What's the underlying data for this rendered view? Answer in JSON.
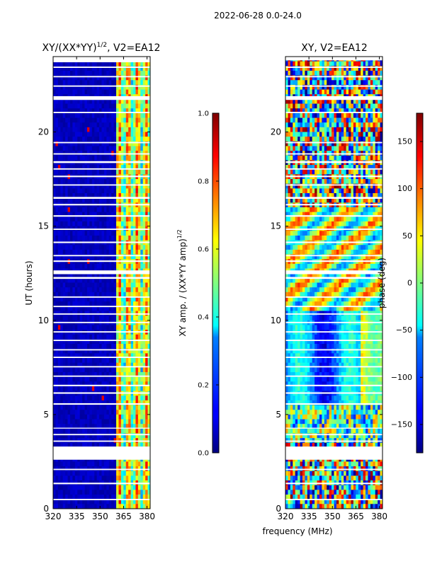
{
  "figure_title": "2022-06-28 0.0-24.0",
  "shared_xlabel": "frequency (MHz)",
  "chart_data": [
    {
      "type": "heatmap",
      "title": "XY/(XX*YY)^1/2, V2=EA12",
      "title_main": "XY/(XX*YY)",
      "title_sup": "1/2",
      "title_rest": ", V2=EA12",
      "xlabel": "frequency (MHz)",
      "ylabel": "UT (hours)",
      "xlim": [
        320,
        382
      ],
      "ylim": [
        0,
        24
      ],
      "xticks": [
        320,
        335,
        350,
        365,
        380
      ],
      "yticks": [
        0,
        5,
        10,
        15,
        20
      ],
      "low_band_end_mhz": 360,
      "colorbar": {
        "label": "XY amp. / (XX*YY amp)^1/2",
        "label_main": "XY amp. / (XX*YY amp)",
        "label_sup": "1/2",
        "range": [
          0.0,
          1.0
        ],
        "ticks": [
          "0.0",
          "0.2",
          "0.4",
          "0.6",
          "0.8",
          "1.0"
        ],
        "tick_values": [
          0.0,
          0.2,
          0.4,
          0.6,
          0.8,
          1.0
        ],
        "colormap": "jet"
      }
    },
    {
      "type": "heatmap",
      "title": "XY, V2=EA12",
      "xlabel": "frequency (MHz)",
      "ylabel": "",
      "xlim": [
        320,
        382
      ],
      "ylim": [
        0,
        24
      ],
      "xticks": [
        320,
        335,
        350,
        365,
        380
      ],
      "yticks": [
        0,
        5,
        10,
        15,
        20
      ],
      "colorbar": {
        "label": "phase (deg)",
        "range": [
          -180,
          180
        ],
        "ticks": [
          "−150",
          "−100",
          "−50",
          "0",
          "50",
          "100",
          "150"
        ],
        "tick_values": [
          -150,
          -100,
          -50,
          0,
          50,
          100,
          150
        ],
        "colormap": "jet"
      }
    }
  ],
  "flagged_ut_gaps": [
    [
      2.6,
      3.3
    ],
    [
      0.45,
      0.52
    ],
    [
      1.3,
      1.38
    ],
    [
      2.05,
      2.12
    ],
    [
      3.55,
      3.62
    ],
    [
      3.9,
      3.97
    ],
    [
      4.25,
      4.3
    ],
    [
      5.52,
      5.6
    ],
    [
      6.1,
      6.18
    ],
    [
      6.5,
      6.58
    ],
    [
      7.0,
      7.07
    ],
    [
      7.5,
      7.57
    ],
    [
      8.0,
      8.07
    ],
    [
      8.4,
      8.47
    ],
    [
      8.9,
      8.97
    ],
    [
      9.35,
      9.42
    ],
    [
      9.85,
      9.92
    ],
    [
      10.3,
      10.37
    ],
    [
      10.7,
      10.77
    ],
    [
      11.2,
      11.27
    ],
    [
      12.2,
      12.3
    ],
    [
      12.45,
      12.65
    ],
    [
      13.1,
      13.18
    ],
    [
      13.4,
      13.47
    ],
    [
      14.1,
      14.18
    ],
    [
      14.8,
      14.87
    ],
    [
      15.5,
      15.58
    ],
    [
      16.1,
      16.18
    ],
    [
      16.45,
      16.55
    ],
    [
      17.15,
      17.22
    ],
    [
      17.6,
      17.68
    ],
    [
      18.0,
      18.07
    ],
    [
      18.35,
      18.45
    ],
    [
      18.8,
      18.87
    ],
    [
      19.4,
      19.47
    ],
    [
      21.0,
      21.07
    ],
    [
      21.7,
      21.9
    ],
    [
      22.4,
      22.47
    ],
    [
      22.9,
      22.97
    ],
    [
      23.4,
      23.47
    ]
  ]
}
